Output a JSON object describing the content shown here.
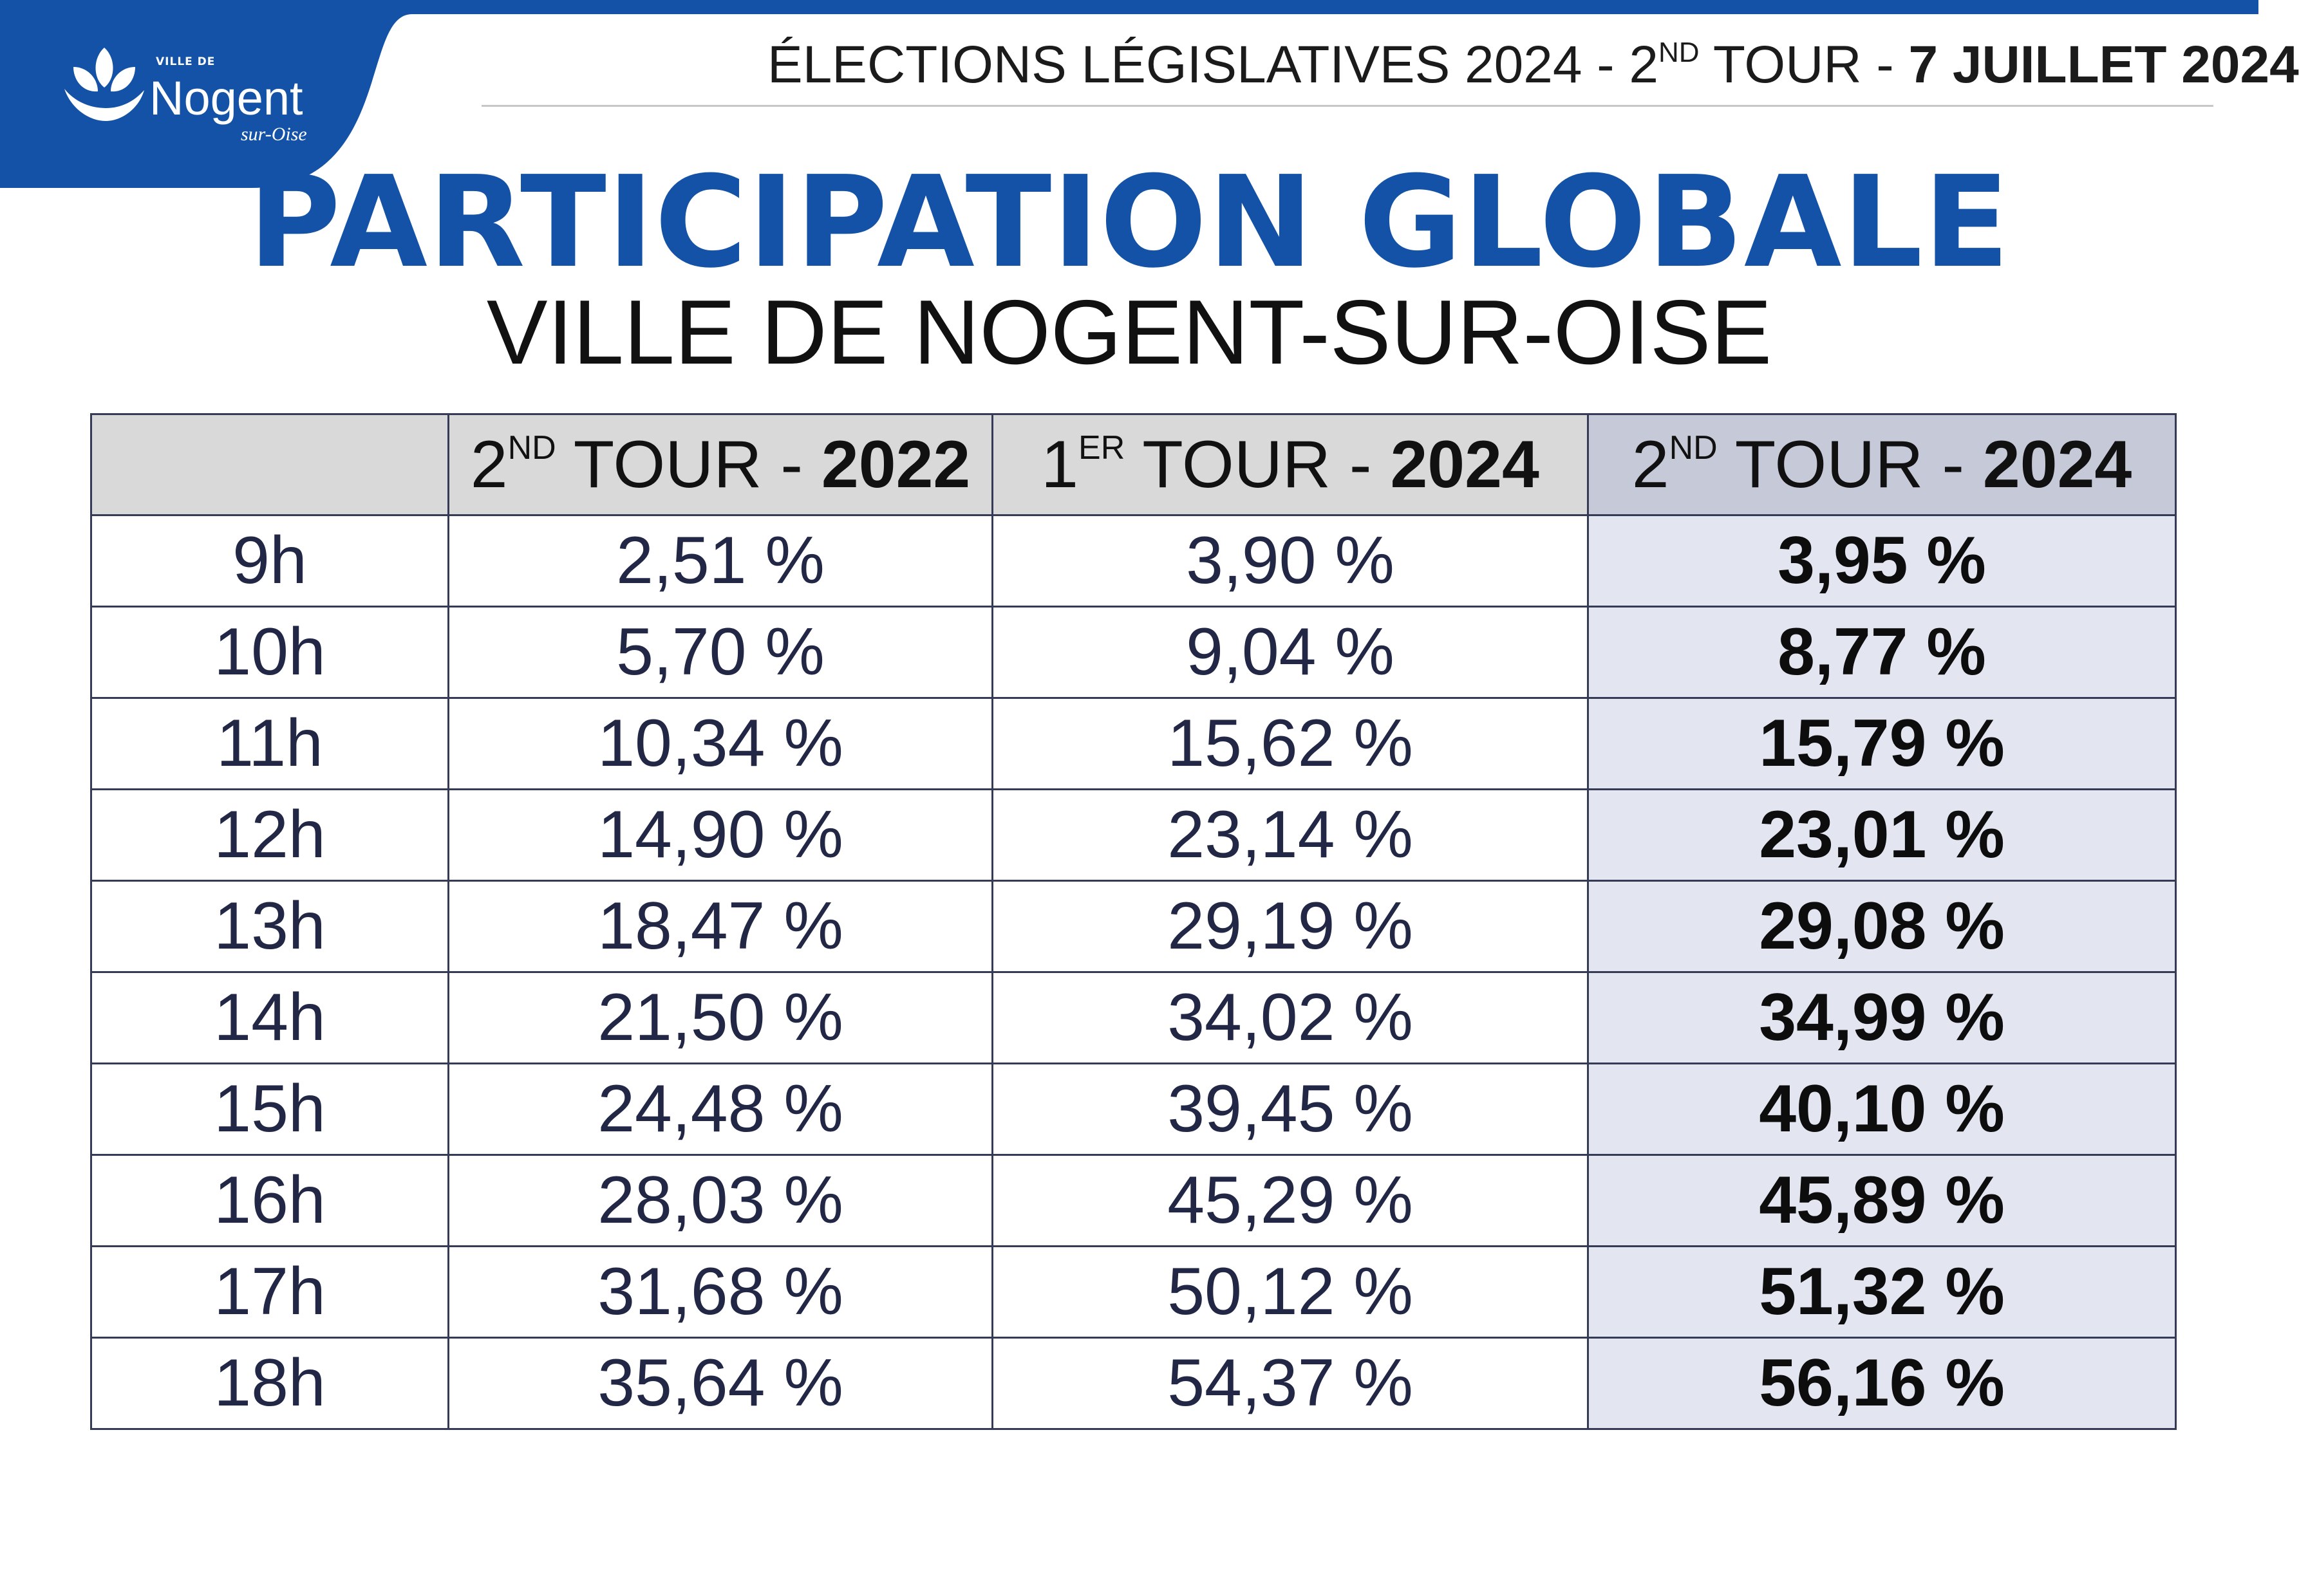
{
  "colors": {
    "brand_blue": "#1352a6",
    "header_gray": "#d9d9d9",
    "current_header_bg": "#c6c9d7",
    "current_col_bg": "#e3e6f0",
    "grid_line": "#353a57",
    "text_dark": "#232746"
  },
  "logo": {
    "icon": "nogent-leaf-logo-icon",
    "ville_de": "VILLE DE",
    "name": "Nogent",
    "sub": "sur-Oise"
  },
  "header": {
    "prefix": "ÉLECTIONS LÉGISLATIVES 2024 - 2",
    "tour_sup": "ND",
    "middle": " TOUR - ",
    "date": "7 JUILLET 2024"
  },
  "title": "PARTICIPATION GLOBALE",
  "subtitle": "VILLE DE NOGENT-SUR-OISE",
  "table": {
    "columns": [
      {
        "num": "2",
        "sup": "ND",
        "label": " TOUR - ",
        "year": "2022"
      },
      {
        "num": "1",
        "sup": "ER",
        "label": " TOUR - ",
        "year": "2024"
      },
      {
        "num": "2",
        "sup": "ND",
        "label": " TOUR - ",
        "year": "2024"
      }
    ],
    "rows": [
      {
        "hour": "9h",
        "tour2_2022": "2,51 %",
        "tour1_2024": "3,90 %",
        "tour2_2024": "3,95 %"
      },
      {
        "hour": "10h",
        "tour2_2022": "5,70 %",
        "tour1_2024": "9,04 %",
        "tour2_2024": "8,77 %"
      },
      {
        "hour": "11h",
        "tour2_2022": "10,34 %",
        "tour1_2024": "15,62 %",
        "tour2_2024": "15,79 %"
      },
      {
        "hour": "12h",
        "tour2_2022": "14,90 %",
        "tour1_2024": "23,14 %",
        "tour2_2024": "23,01 %"
      },
      {
        "hour": "13h",
        "tour2_2022": "18,47 %",
        "tour1_2024": "29,19 %",
        "tour2_2024": "29,08 %"
      },
      {
        "hour": "14h",
        "tour2_2022": "21,50 %",
        "tour1_2024": "34,02 %",
        "tour2_2024": "34,99 %"
      },
      {
        "hour": "15h",
        "tour2_2022": "24,48 %",
        "tour1_2024": "39,45 %",
        "tour2_2024": "40,10 %"
      },
      {
        "hour": "16h",
        "tour2_2022": "28,03 %",
        "tour1_2024": "45,29 %",
        "tour2_2024": "45,89 %"
      },
      {
        "hour": "17h",
        "tour2_2022": "31,68 %",
        "tour1_2024": "50,12 %",
        "tour2_2024": "51,32 %"
      },
      {
        "hour": "18h",
        "tour2_2022": "35,64 %",
        "tour1_2024": "54,37 %",
        "tour2_2024": "56,16 %"
      }
    ]
  }
}
